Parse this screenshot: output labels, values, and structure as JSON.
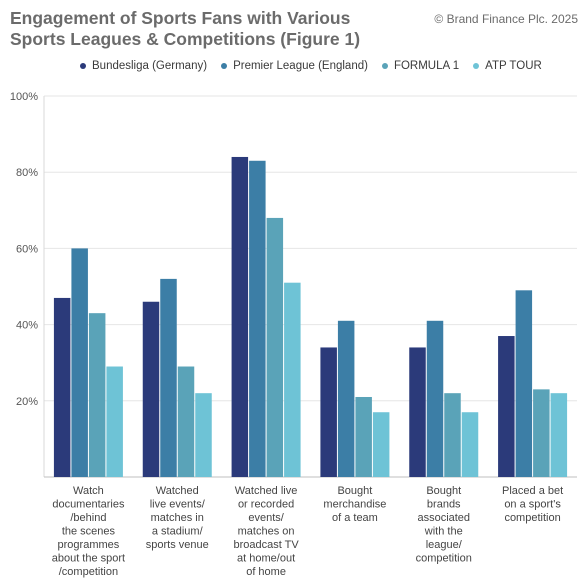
{
  "header": {
    "title": "Engagement of Sports Fans with Various Sports Leagues & Competitions (Figure 1)",
    "copyright": "© Brand Finance Plc. 2025"
  },
  "chart_data": {
    "type": "bar",
    "title": "Engagement of Sports Fans with Various Sports Leagues & Competitions (Figure 1)",
    "xlabel": "",
    "ylabel": "",
    "ylim": [
      0,
      100
    ],
    "yticks": [
      20,
      40,
      60,
      80,
      100
    ],
    "ytick_labels": [
      "20%",
      "40%",
      "60%",
      "80%",
      "100%"
    ],
    "grid": true,
    "legend_position": "top",
    "categories": [
      [
        "Watch",
        "documentaries",
        "/behind",
        "the scenes",
        "programmes",
        "about the sport",
        "/competition"
      ],
      [
        "Watched",
        "live events/",
        "matches in",
        "a stadium/",
        "sports venue"
      ],
      [
        "Watched live",
        "or recorded",
        "events/",
        "matches on",
        "broadcast TV",
        "at home/out",
        "of home"
      ],
      [
        "Bought",
        "merchandise",
        "of a team"
      ],
      [
        "Bought",
        "brands",
        "associated",
        "with the",
        "league/",
        "competition"
      ],
      [
        "Placed a bet",
        "on a sport's",
        "competition"
      ]
    ],
    "series": [
      {
        "name": "Bundesliga (Germany)",
        "color": "#2b3a7a",
        "values": [
          47,
          46,
          84,
          34,
          34,
          37
        ]
      },
      {
        "name": "Premier League (England)",
        "color": "#3c7ea6",
        "values": [
          60,
          52,
          83,
          41,
          41,
          49
        ]
      },
      {
        "name": "FORMULA 1",
        "color": "#5aa3b8",
        "values": [
          43,
          29,
          68,
          21,
          22,
          23
        ]
      },
      {
        "name": "ATP TOUR",
        "color": "#6ec3d6",
        "values": [
          29,
          22,
          51,
          17,
          17,
          22
        ]
      }
    ]
  }
}
